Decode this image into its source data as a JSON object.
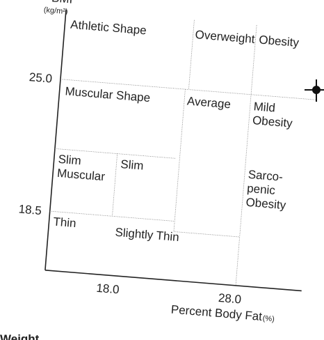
{
  "y_axis": {
    "label": "BMI",
    "unit": "(kg/m²)",
    "ticks": [
      "25.0",
      "18.5"
    ]
  },
  "x_axis": {
    "label": "Percent Body Fat",
    "unit": "(%)",
    "ticks": [
      "18.0",
      "28.0"
    ]
  },
  "regions": [
    "Athletic Shape",
    "Overweight",
    "Obesity",
    "Muscular Shape",
    "Average",
    "Mild",
    "Obesity",
    "Slim",
    "Muscular",
    "Slim",
    "Sarco-",
    "penic",
    "Obesity",
    "Thin",
    "Slightly Thin"
  ],
  "footer": "Weight"
}
